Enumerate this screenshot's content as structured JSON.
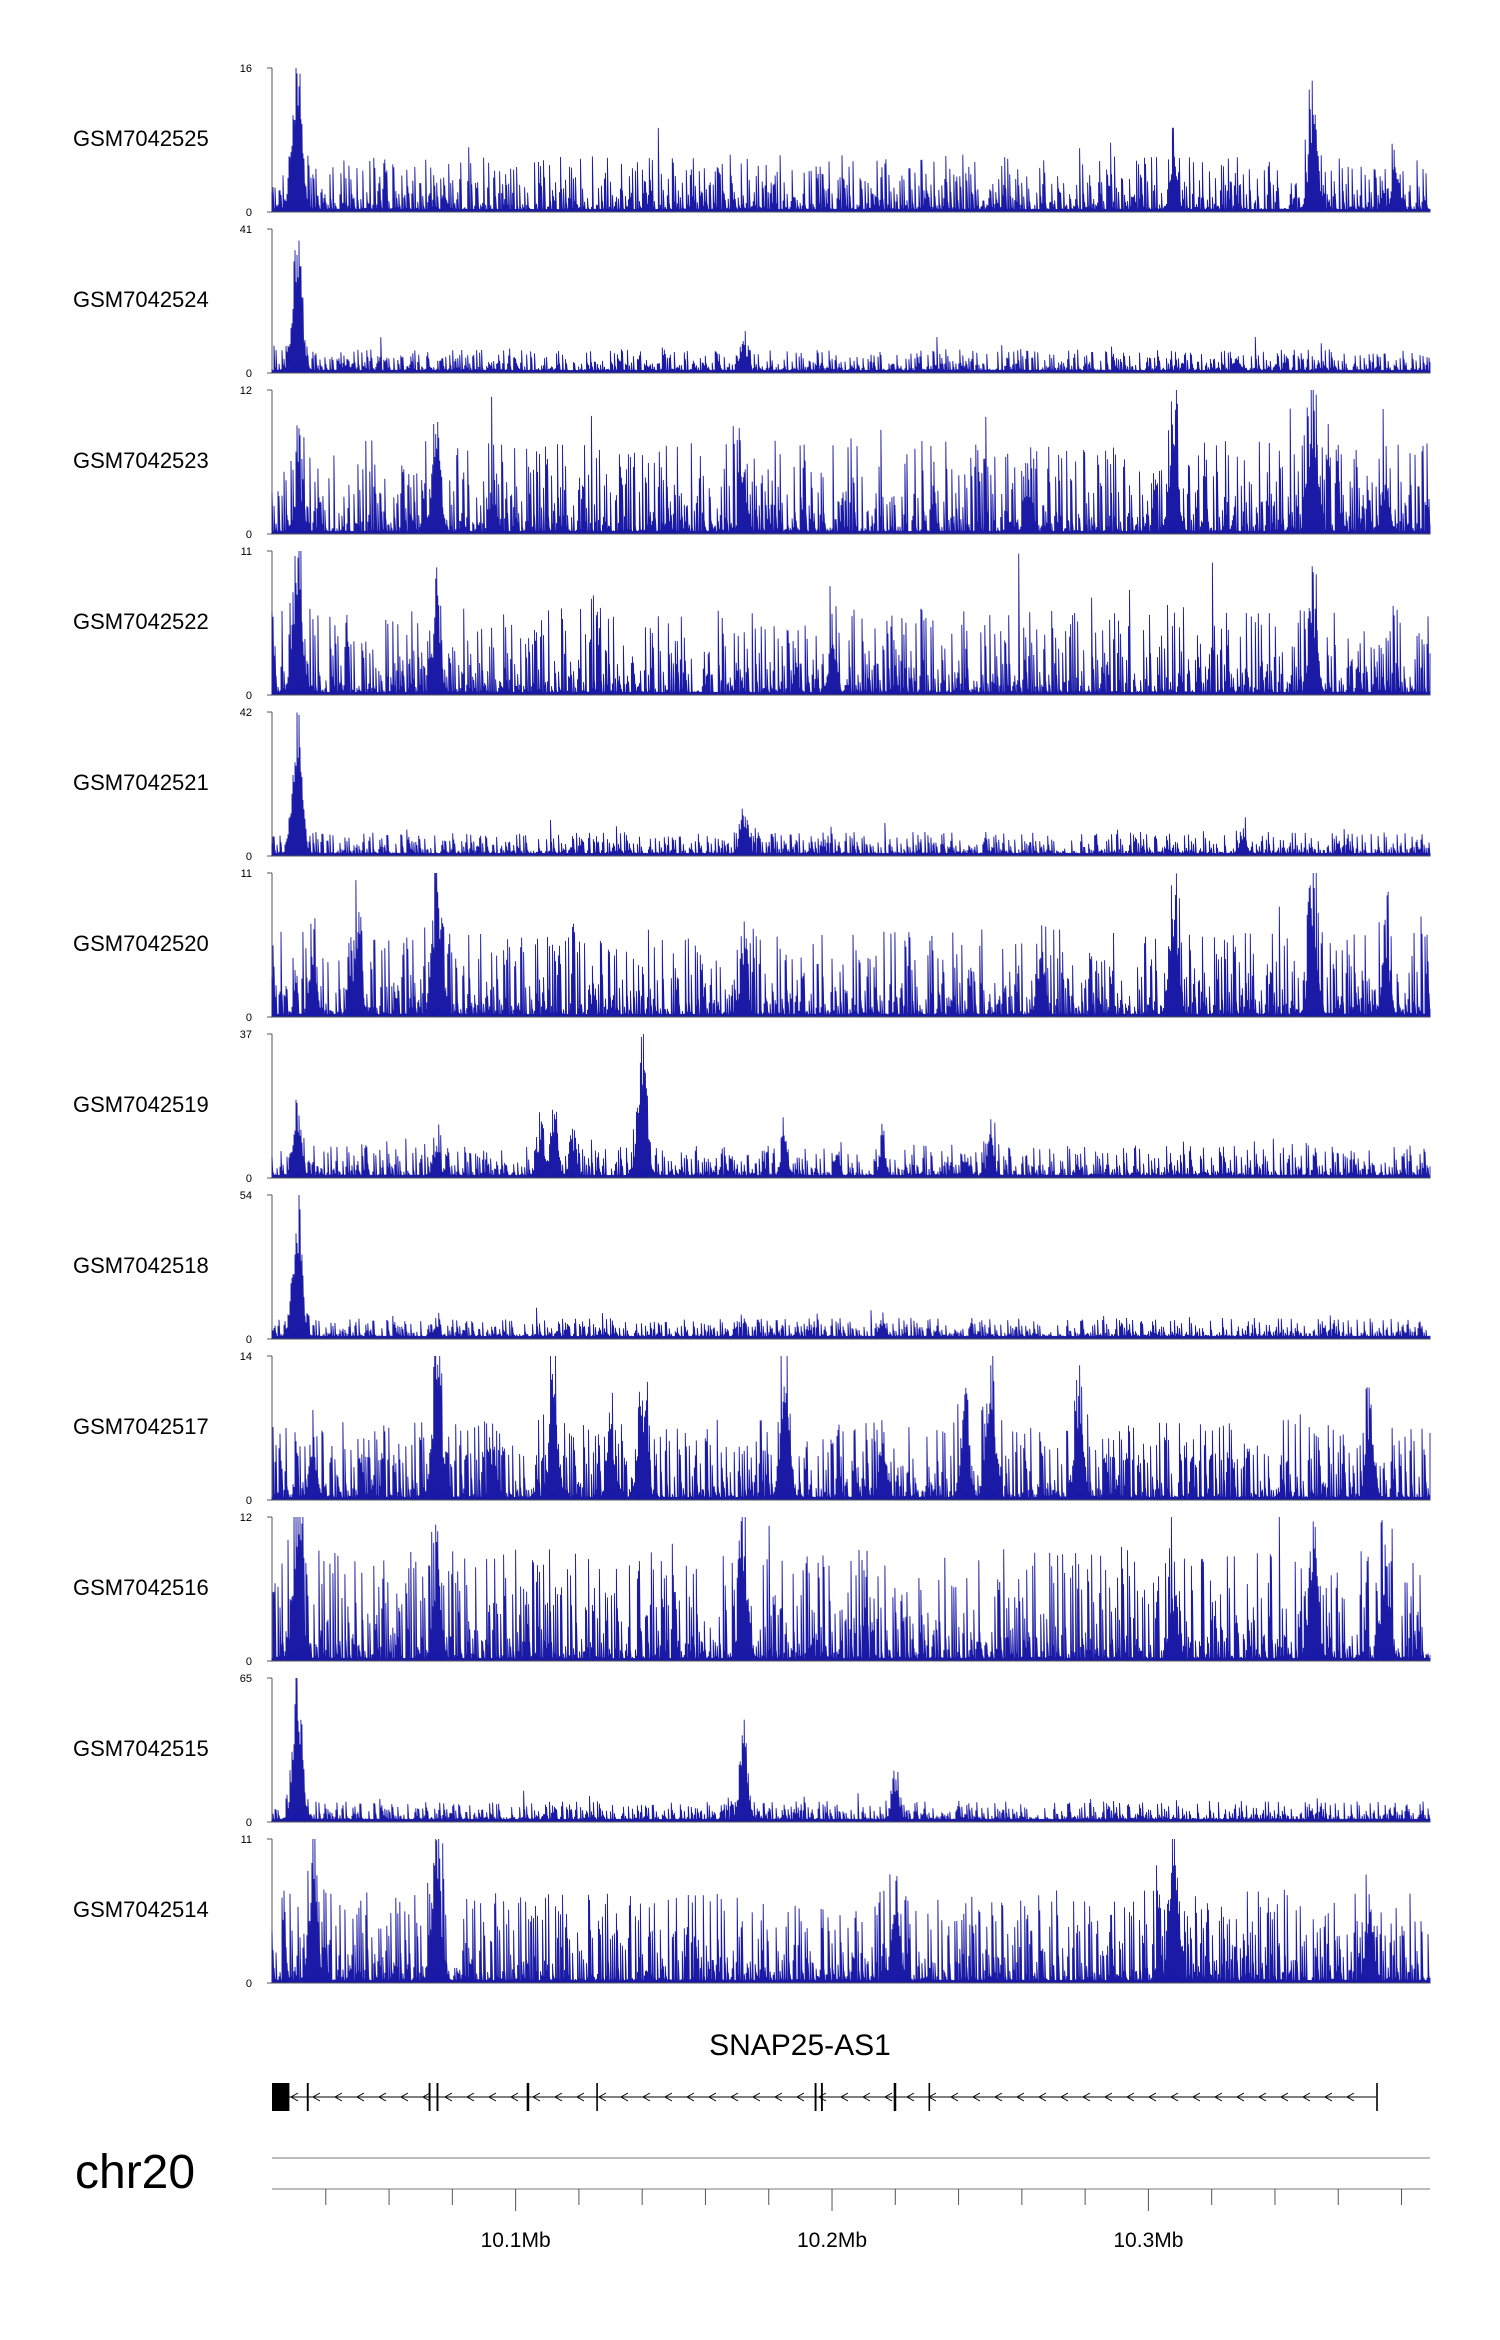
{
  "chart_data": {
    "type": "area",
    "track_color": "#1a1aa6",
    "track_fill": "#0000c8",
    "tracks": [
      {
        "name": "GSM7042525",
        "ymax": "16",
        "ymin": "0",
        "max": 16,
        "noise": 0.09,
        "peaks": [
          [
            10.031,
            16
          ],
          [
            10.308,
            6
          ],
          [
            10.352,
            13
          ],
          [
            10.378,
            5
          ]
        ]
      },
      {
        "name": "GSM7042524",
        "ymax": "41",
        "ymin": "0",
        "max": 41,
        "noise": 0.035,
        "peaks": [
          [
            10.031,
            41
          ],
          [
            10.172,
            10
          ],
          [
            10.328,
            4
          ]
        ]
      },
      {
        "name": "GSM7042523",
        "ymax": "12",
        "ymin": "0",
        "max": 12,
        "noise": 0.15,
        "peaks": [
          [
            10.031,
            4
          ],
          [
            10.075,
            9
          ],
          [
            10.093,
            4
          ],
          [
            10.172,
            5
          ],
          [
            10.262,
            5
          ],
          [
            10.308,
            10
          ],
          [
            10.352,
            11
          ],
          [
            10.375,
            5
          ]
        ]
      },
      {
        "name": "GSM7042522",
        "ymax": "11",
        "ymin": "0",
        "max": 11,
        "noise": 0.14,
        "peaks": [
          [
            10.031,
            11
          ],
          [
            10.075,
            7
          ],
          [
            10.2,
            4
          ],
          [
            10.352,
            7
          ]
        ]
      },
      {
        "name": "GSM7042521",
        "ymax": "42",
        "ymin": "0",
        "max": 42,
        "noise": 0.035,
        "peaks": [
          [
            10.031,
            42
          ],
          [
            10.172,
            14
          ],
          [
            10.33,
            7
          ]
        ]
      },
      {
        "name": "GSM7042520",
        "ymax": "11",
        "ymin": "0",
        "max": 11,
        "noise": 0.14,
        "peaks": [
          [
            10.036,
            5
          ],
          [
            10.05,
            7
          ],
          [
            10.075,
            11
          ],
          [
            10.172,
            5
          ],
          [
            10.266,
            5
          ],
          [
            10.308,
            9
          ],
          [
            10.352,
            9
          ],
          [
            10.375,
            6
          ]
        ]
      },
      {
        "name": "GSM7042519",
        "ymax": "37",
        "ymin": "0",
        "max": 37,
        "noise": 0.05,
        "peaks": [
          [
            10.031,
            19
          ],
          [
            10.075,
            8
          ],
          [
            10.108,
            11
          ],
          [
            10.112,
            16
          ],
          [
            10.118,
            9
          ],
          [
            10.14,
            37
          ],
          [
            10.185,
            10
          ],
          [
            10.216,
            8
          ],
          [
            10.242,
            5
          ],
          [
            10.25,
            11
          ]
        ]
      },
      {
        "name": "GSM7042518",
        "ymax": "54",
        "ymin": "0",
        "max": 54,
        "noise": 0.03,
        "peaks": [
          [
            10.031,
            54
          ],
          [
            10.075,
            4
          ],
          [
            10.216,
            7
          ]
        ]
      },
      {
        "name": "GSM7042517",
        "ymax": "14",
        "ymin": "0",
        "max": 14,
        "noise": 0.13,
        "peaks": [
          [
            10.036,
            6
          ],
          [
            10.075,
            14
          ],
          [
            10.093,
            6
          ],
          [
            10.112,
            12
          ],
          [
            10.13,
            7
          ],
          [
            10.14,
            11
          ],
          [
            10.185,
            12
          ],
          [
            10.216,
            7
          ],
          [
            10.242,
            9
          ],
          [
            10.25,
            12
          ],
          [
            10.278,
            11
          ],
          [
            10.37,
            8
          ]
        ]
      },
      {
        "name": "GSM7042516",
        "ymax": "12",
        "ymin": "0",
        "max": 12,
        "noise": 0.18,
        "peaks": [
          [
            10.031,
            12
          ],
          [
            10.075,
            8
          ],
          [
            10.172,
            10
          ],
          [
            10.308,
            6
          ],
          [
            10.352,
            11
          ],
          [
            10.375,
            8
          ]
        ]
      },
      {
        "name": "GSM7042515",
        "ymax": "65",
        "ymin": "0",
        "max": 65,
        "noise": 0.03,
        "peaks": [
          [
            10.031,
            65
          ],
          [
            10.172,
            40
          ],
          [
            10.22,
            20
          ]
        ]
      },
      {
        "name": "GSM7042514",
        "ymax": "11",
        "ymin": "0",
        "max": 11,
        "noise": 0.15,
        "peaks": [
          [
            10.036,
            9
          ],
          [
            10.075,
            11
          ],
          [
            10.22,
            7
          ],
          [
            10.308,
            11
          ],
          [
            10.37,
            6
          ]
        ]
      }
    ],
    "x_range_mb": [
      10.023,
      10.389
    ],
    "gene": {
      "name": "SNAP25-AS1",
      "start_mb": 10.023,
      "end_mb": 10.372,
      "strand": "-",
      "exons_mb": [
        [
          10.023,
          10.0285
        ],
        [
          10.034,
          10.0346
        ],
        [
          10.0725,
          10.0731
        ],
        [
          10.075,
          10.0756
        ],
        [
          10.1035,
          10.1043
        ],
        [
          10.1255,
          10.126
        ],
        [
          10.1945,
          10.1951
        ],
        [
          10.1965,
          10.1971
        ],
        [
          10.2195,
          10.2203
        ],
        [
          10.2305,
          10.231
        ],
        [
          10.372,
          10.3725
        ]
      ]
    },
    "chromosome": "chr20",
    "x_ticks": [
      {
        "pos": 10.1,
        "label": "10.1Mb"
      },
      {
        "pos": 10.2,
        "label": "10.2Mb"
      },
      {
        "pos": 10.3,
        "label": "10.3Mb"
      }
    ],
    "minor_tick_step_mb": 0.02
  }
}
